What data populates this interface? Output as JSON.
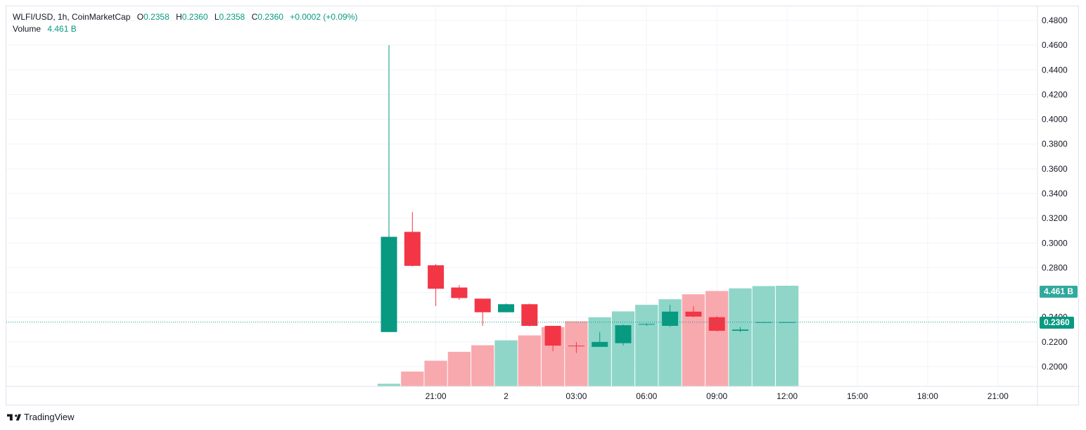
{
  "legend": {
    "symbol": "WLFI/USD, 1h, CoinMarketCap",
    "open_label": "O",
    "open": "0.2358",
    "high_label": "H",
    "high": "0.2360",
    "low_label": "L",
    "low": "0.2358",
    "close_label": "C",
    "close": "0.2360",
    "change": "+0.0002 (+0.09%)",
    "volume_label": "Volume",
    "volume": "4.461 B"
  },
  "tags": {
    "volume": "4.461 B",
    "price": "0.2360"
  },
  "footer": {
    "brand": "TradingView"
  },
  "colors": {
    "up": "#089981",
    "down": "#f23645",
    "vol_up": "#8fd6c9",
    "vol_down": "#f8a9ae",
    "grid": "#f0f3fa"
  },
  "chart_data": {
    "type": "candlestick",
    "symbol": "WLFI/USD",
    "interval": "1h",
    "source": "CoinMarketCap",
    "y_axis": {
      "range": [
        0.185,
        0.488
      ],
      "ticks": [
        "0.2000",
        "0.2200",
        "0.2400",
        "0.2600",
        "0.2800",
        "0.3000",
        "0.3200",
        "0.3400",
        "0.3600",
        "0.3800",
        "0.4000",
        "0.4200",
        "0.4400",
        "0.4600",
        "0.4800"
      ]
    },
    "x_axis": {
      "ticks": [
        "21:00",
        "2",
        "03:00",
        "06:00",
        "09:00",
        "12:00",
        "15:00",
        "18:00",
        "21:00"
      ],
      "tick_hours": [
        21,
        24,
        27,
        30,
        33,
        36,
        39,
        42,
        45
      ]
    },
    "current_price": 0.236,
    "candles": [
      {
        "hour": 19,
        "open": 0.228,
        "high": 0.46,
        "low": 0.228,
        "close": 0.305,
        "volume": 0.08
      },
      {
        "hour": 20,
        "open": 0.309,
        "high": 0.325,
        "low": 0.281,
        "close": 0.2815,
        "volume": 0.45
      },
      {
        "hour": 21,
        "open": 0.282,
        "high": 0.283,
        "low": 0.249,
        "close": 0.263,
        "volume": 0.78
      },
      {
        "hour": 22,
        "open": 0.264,
        "high": 0.266,
        "low": 0.254,
        "close": 0.2555,
        "volume": 1.05
      },
      {
        "hour": 23,
        "open": 0.255,
        "high": 0.255,
        "low": 0.233,
        "close": 0.244,
        "volume": 1.25
      },
      {
        "hour": 24,
        "open": 0.244,
        "high": 0.251,
        "low": 0.244,
        "close": 0.2505,
        "volume": 1.4
      },
      {
        "hour": 25,
        "open": 0.2505,
        "high": 0.251,
        "low": 0.2325,
        "close": 0.233,
        "volume": 1.55
      },
      {
        "hour": 26,
        "open": 0.233,
        "high": 0.233,
        "low": 0.2125,
        "close": 0.217,
        "volume": 1.8
      },
      {
        "hour": 27,
        "open": 0.217,
        "high": 0.22,
        "low": 0.211,
        "close": 0.2165,
        "volume": 1.98
      },
      {
        "hour": 28,
        "open": 0.216,
        "high": 0.228,
        "low": 0.216,
        "close": 0.22,
        "volume": 2.1
      },
      {
        "hour": 29,
        "open": 0.219,
        "high": 0.234,
        "low": 0.217,
        "close": 0.2335,
        "volume": 2.28
      },
      {
        "hour": 30,
        "open": 0.234,
        "high": 0.235,
        "low": 0.233,
        "close": 0.2345,
        "volume": 2.48
      },
      {
        "hour": 31,
        "open": 0.233,
        "high": 0.25,
        "low": 0.232,
        "close": 0.2445,
        "volume": 2.65
      },
      {
        "hour": 32,
        "open": 0.2445,
        "high": 0.249,
        "low": 0.24,
        "close": 0.2405,
        "volume": 2.8
      },
      {
        "hour": 33,
        "open": 0.24,
        "high": 0.241,
        "low": 0.2285,
        "close": 0.229,
        "volume": 2.9
      },
      {
        "hour": 34,
        "open": 0.229,
        "high": 0.232,
        "low": 0.228,
        "close": 0.23,
        "volume": 2.98
      },
      {
        "hour": 35,
        "open": 0.2357,
        "high": 0.2362,
        "low": 0.2357,
        "close": 0.236,
        "volume": 3.05
      },
      {
        "hour": 36,
        "open": 0.2358,
        "high": 0.236,
        "low": 0.2358,
        "close": 0.236,
        "volume": 3.06
      }
    ]
  }
}
